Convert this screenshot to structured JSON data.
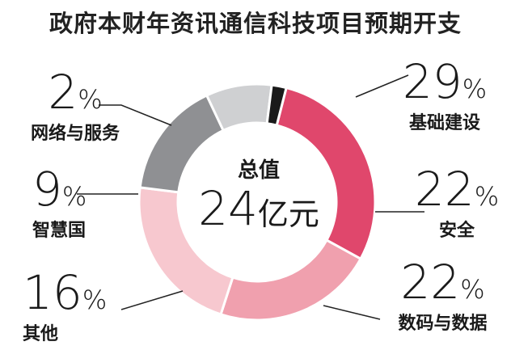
{
  "chart_data": {
    "type": "pie",
    "title": "政府本财年资讯通信科技项目预期开支",
    "center_title": "总值",
    "center_value": "24",
    "center_unit": "亿元",
    "slices": [
      {
        "label": "基础建设",
        "value": 29,
        "pct_text": "29",
        "color": "#e0476c"
      },
      {
        "label": "安全",
        "value": 22,
        "pct_text": "22",
        "color": "#f0a0ae"
      },
      {
        "label": "数码与数据",
        "value": 22,
        "pct_text": "22",
        "color": "#f7c8cf"
      },
      {
        "label": "其他",
        "value": 16,
        "pct_text": "16",
        "color": "#8f9093"
      },
      {
        "label": "智慧国",
        "value": 9,
        "pct_text": "9",
        "color": "#cfd0d2"
      },
      {
        "label": "网络与服务",
        "value": 2,
        "pct_text": "2",
        "color": "#1a1a1a"
      }
    ],
    "percent_symbol": "%"
  }
}
